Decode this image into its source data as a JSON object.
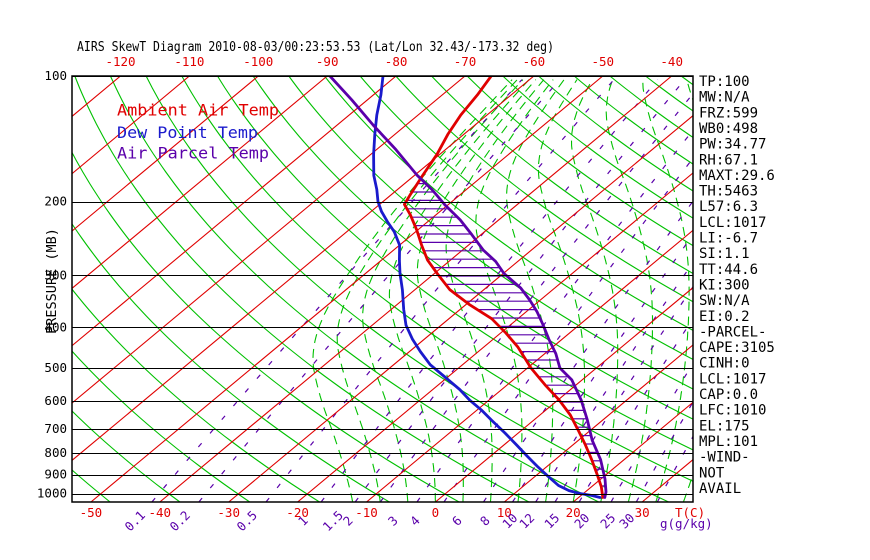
{
  "title": "AIRS SkewT Diagram 2010-08-03/00:23:53.53 (Lat/Lon 32.43/-173.32 deg)",
  "legend": [
    {
      "label": "Ambient Air Temp",
      "color": "#e00000"
    },
    {
      "label": "Dew Point Temp",
      "color": "#1a1acc"
    },
    {
      "label": "Air Parcel Temp",
      "color": "#5a00aa"
    }
  ],
  "axes": {
    "pressure_label": "PRESSURE (MB)",
    "pressure_ticks": [
      100,
      200,
      300,
      400,
      500,
      600,
      700,
      800,
      900,
      1000
    ],
    "temp_top_ticks": [
      -120,
      -110,
      -100,
      -90,
      -80,
      -70,
      -60,
      -50,
      -40
    ],
    "temp_bottom_ticks": [
      -50,
      -40,
      -30,
      -20,
      -10,
      0,
      10,
      20,
      30
    ],
    "temp_unit_label": "T(C)",
    "mixing_unit_label": "g(g/kg)",
    "mixing_ratio_ticks": [
      0.1,
      0.2,
      0.5,
      1,
      1.5,
      2,
      3,
      4,
      6,
      8,
      10,
      12,
      15,
      20,
      25,
      30
    ]
  },
  "stats": [
    "TP:100",
    "MW:N/A",
    "FRZ:599",
    "WB0:498",
    "PW:34.77",
    "RH:67.1",
    "MAXT:29.6",
    "TH:5463",
    "L57:6.3",
    "LCL:1017",
    "LI:-6.7",
    "SI:1.1",
    "TT:44.6",
    "KI:300",
    "SW:N/A",
    "EI:0.2",
    "-PARCEL-",
    "CAPE:3105",
    "CINH:0",
    "LCL:1017",
    "CAP:0.0",
    "LFC:1010",
    "EL:175",
    "MPL:101",
    "-WIND-",
    "NOT",
    "AVAIL"
  ],
  "chart_data": {
    "type": "line",
    "diagram": "skewt_logp",
    "pressure_range_mb": [
      100,
      1047
    ],
    "grid": {
      "isotherm_major_step_C": 10,
      "dry_adiabat_theta_K": {
        "min": 223,
        "max": 473,
        "step": 10
      },
      "moist_adiabat_thetaw_C": [
        -12,
        -8,
        -4,
        0,
        4,
        8,
        12,
        16,
        20,
        24,
        28,
        32,
        36
      ],
      "colors": {
        "isotherm_major": "#e00000",
        "dry_adiabat": "#00c000",
        "moist_adiabat": "#00c000",
        "mixing_ratio": "#5a00aa",
        "pressure_line": "#000000"
      }
    },
    "series": [
      {
        "name": "Ambient Air Temp",
        "color": "#e00000",
        "points_p_T": [
          [
            100,
            -66.2
          ],
          [
            111,
            -64.9
          ],
          [
            124,
            -63.8
          ],
          [
            138,
            -62.3
          ],
          [
            154,
            -60.4
          ],
          [
            173,
            -58.8
          ],
          [
            193,
            -57.2
          ],
          [
            203,
            -56.4
          ],
          [
            215,
            -53.7
          ],
          [
            234,
            -50.1
          ],
          [
            254,
            -46.8
          ],
          [
            276,
            -43.3
          ],
          [
            297,
            -39.6
          ],
          [
            325,
            -34.9
          ],
          [
            352,
            -29.6
          ],
          [
            381,
            -23.8
          ],
          [
            412,
            -19.3
          ],
          [
            446,
            -15.0
          ],
          [
            500,
            -9.5
          ],
          [
            549,
            -4.5
          ],
          [
            597,
            0.2
          ],
          [
            648,
            4.4
          ],
          [
            703,
            8.1
          ],
          [
            764,
            11.8
          ],
          [
            829,
            15.3
          ],
          [
            900,
            18.7
          ],
          [
            962,
            21.4
          ],
          [
            1021,
            23.5
          ]
        ]
      },
      {
        "name": "Dew Point Temp",
        "color": "#1a1acc",
        "points_p_T": [
          [
            100,
            -81.9
          ],
          [
            111,
            -78.9
          ],
          [
            124,
            -76.0
          ],
          [
            138,
            -72.9
          ],
          [
            154,
            -69.6
          ],
          [
            173,
            -65.9
          ],
          [
            187,
            -63.0
          ],
          [
            200,
            -60.7
          ],
          [
            211,
            -58.5
          ],
          [
            223,
            -55.9
          ],
          [
            236,
            -53.1
          ],
          [
            254,
            -50.0
          ],
          [
            276,
            -47.4
          ],
          [
            297,
            -45.0
          ],
          [
            325,
            -41.8
          ],
          [
            362,
            -38.2
          ],
          [
            395,
            -35.1
          ],
          [
            427,
            -31.7
          ],
          [
            457,
            -28.4
          ],
          [
            491,
            -24.7
          ],
          [
            524,
            -20.6
          ],
          [
            563,
            -16.1
          ],
          [
            597,
            -12.8
          ],
          [
            630,
            -9.4
          ],
          [
            667,
            -6.1
          ],
          [
            716,
            -1.9
          ],
          [
            764,
            1.8
          ],
          [
            814,
            5.4
          ],
          [
            859,
            8.5
          ],
          [
            906,
            11.7
          ],
          [
            956,
            15.0
          ],
          [
            983,
            17.4
          ],
          [
            999,
            19.5
          ],
          [
            1010,
            21.6
          ],
          [
            1021,
            23.1
          ]
        ]
      },
      {
        "name": "Air Parcel Temp",
        "color": "#5a00aa",
        "points_p_T": [
          [
            100,
            -89.6
          ],
          [
            114,
            -82.3
          ],
          [
            131,
            -74.8
          ],
          [
            150,
            -67.2
          ],
          [
            173,
            -59.6
          ],
          [
            187,
            -55.0
          ],
          [
            204,
            -50.3
          ],
          [
            221,
            -45.6
          ],
          [
            240,
            -41.3
          ],
          [
            261,
            -37.0
          ],
          [
            278,
            -33.2
          ],
          [
            297,
            -29.9
          ],
          [
            322,
            -24.9
          ],
          [
            344,
            -21.5
          ],
          [
            367,
            -18.4
          ],
          [
            394,
            -15.3
          ],
          [
            427,
            -11.9
          ],
          [
            462,
            -8.4
          ],
          [
            500,
            -5.3
          ],
          [
            534,
            -1.5
          ],
          [
            597,
            3.4
          ],
          [
            667,
            7.8
          ],
          [
            745,
            12.0
          ],
          [
            829,
            16.6
          ],
          [
            922,
            20.6
          ],
          [
            990,
            23.0
          ],
          [
            1021,
            23.8
          ]
        ]
      }
    ],
    "cape_hatch": {
      "between": [
        "Air Parcel Temp",
        "Ambient Air Temp"
      ],
      "color": "#5a00aa",
      "row_spacing_px": 8.4
    }
  }
}
